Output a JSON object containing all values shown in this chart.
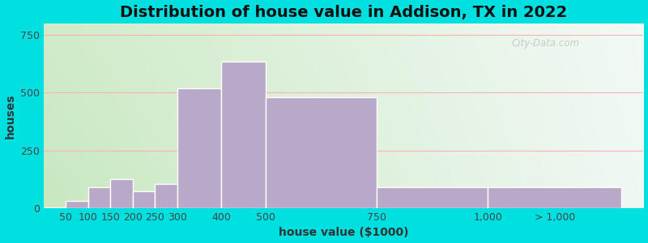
{
  "title": "Distribution of house value in Addison, TX in 2022",
  "xlabel": "house value ($1000)",
  "ylabel": "houses",
  "bar_color": "#b8a9c9",
  "bar_edgecolor": "#ffffff",
  "background_outer": "#00e0e0",
  "yticks": [
    0,
    250,
    500,
    750
  ],
  "ylim": [
    0,
    800
  ],
  "bar_labels": [
    "50",
    "100",
    "150",
    "200",
    "250",
    "300",
    "400",
    "500",
    "750",
    "1,000",
    "> 1,000"
  ],
  "bar_values": [
    5,
    30,
    90,
    125,
    75,
    105,
    520,
    635,
    480,
    90,
    90
  ],
  "bar_left_edges": [
    0,
    50,
    100,
    150,
    200,
    250,
    300,
    400,
    500,
    750,
    1000
  ],
  "bar_right_edges": [
    50,
    100,
    150,
    200,
    250,
    300,
    400,
    500,
    750,
    1000,
    1300
  ],
  "xlim_left": 0,
  "xlim_right": 1350,
  "watermark": "City-Data.com",
  "title_fontsize": 14,
  "axis_fontsize": 10,
  "tick_fontsize": 9,
  "grid_color": "#ffb0b0",
  "bg_left_color": "#c8e8c0",
  "bg_right_color": "#f0f8f8"
}
